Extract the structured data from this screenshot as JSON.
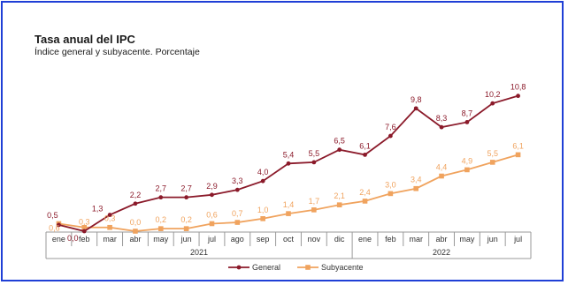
{
  "chart_data": {
    "type": "line",
    "title": "Tasa anual del IPC",
    "subtitle": "Índice general y subyacente. Porcentaje",
    "categories": [
      "ene",
      "feb",
      "mar",
      "abr",
      "may",
      "jun",
      "jul",
      "ago",
      "sep",
      "oct",
      "nov",
      "dic",
      "ene",
      "feb",
      "mar",
      "abr",
      "may",
      "jun",
      "jul"
    ],
    "category_groups": [
      {
        "label": "2021",
        "count": 12
      },
      {
        "label": "2022",
        "count": 7
      }
    ],
    "series": [
      {
        "name": "General",
        "color": "#8b1a2a",
        "values": [
          0.5,
          0.0,
          1.3,
          2.2,
          2.7,
          2.7,
          2.9,
          3.3,
          4.0,
          5.4,
          5.5,
          6.5,
          6.1,
          7.6,
          9.8,
          8.3,
          8.7,
          10.2,
          10.8
        ],
        "labels": [
          "0,5",
          "0,0",
          "1,3",
          "2,2",
          "2,7",
          "2,7",
          "2,9",
          "3,3",
          "4,0",
          "5,4",
          "5,5",
          "6,5",
          "6,1",
          "7,6",
          "9,8",
          "8,3",
          "8,7",
          "10,2",
          "10,8"
        ]
      },
      {
        "name": "Subyacente",
        "color": "#f0a35e",
        "values": [
          0.6,
          0.3,
          0.3,
          0.0,
          0.2,
          0.2,
          0.6,
          0.7,
          1.0,
          1.4,
          1.7,
          2.1,
          2.4,
          3.0,
          3.4,
          4.4,
          4.9,
          5.5,
          6.1
        ],
        "labels": [
          "0,6",
          "0,3",
          "0,3",
          "0,0",
          "0,2",
          "0,2",
          "0,6",
          "0,7",
          "1,0",
          "1,4",
          "1,7",
          "2,1",
          "2,4",
          "3,0",
          "3,4",
          "4,4",
          "4,9",
          "5,5",
          "6,1"
        ]
      }
    ],
    "legend_position": "bottom-center",
    "grid": false
  }
}
